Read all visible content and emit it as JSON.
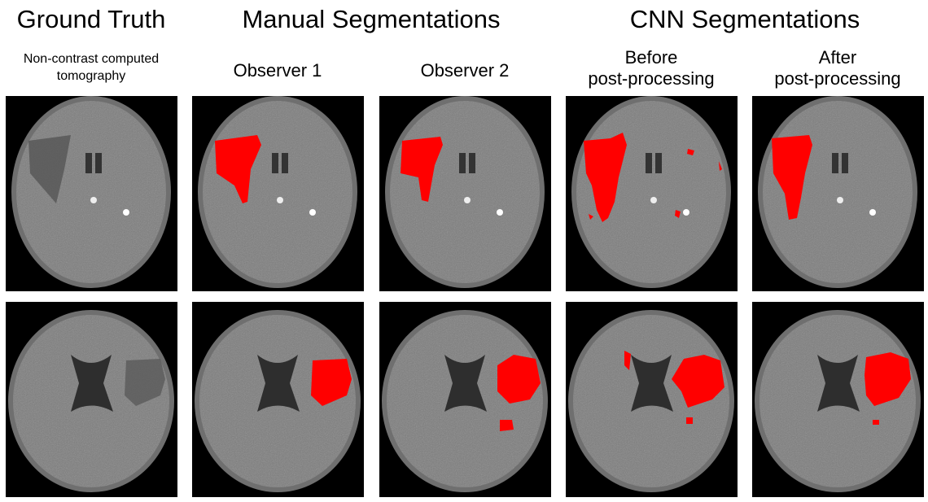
{
  "headers": {
    "ground_truth": "Ground Truth",
    "manual": "Manual Segmentations",
    "cnn": "CNN Segmentations"
  },
  "subheaders": {
    "gt": "Non-contrast computed tomography",
    "obs1": "Observer 1",
    "obs2": "Observer 2",
    "before_l1": "Before",
    "before_l2": "post-processing",
    "after_l1": "After",
    "after_l2": "post-processing"
  },
  "colors": {
    "segmentation": "#ff0000",
    "background": "#000000",
    "tissue": "#7a7a7a"
  }
}
